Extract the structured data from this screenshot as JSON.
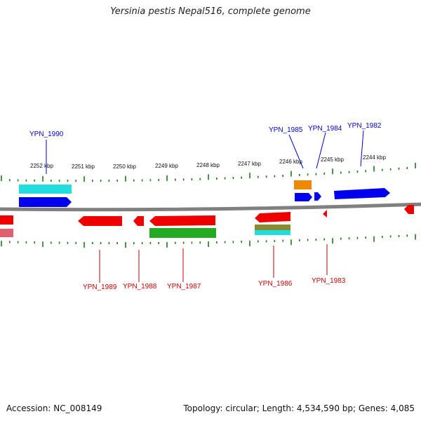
{
  "title": "Yersinia pestis Nepal516, complete genome",
  "footer": {
    "accession": "Accession: NC_008149",
    "info": "Topology: circular; Length: 4,534,590 bp; Genes: 4,085"
  },
  "colors": {
    "backbone": "#808080",
    "tick": "#1a7a1a",
    "label_top": "#0000cc",
    "label_bottom": "#cc0000",
    "blue": "#0000ee",
    "cyan": "#22dddd",
    "red": "#ee0000",
    "pink": "#e06070",
    "orange": "#ee8800",
    "green": "#22aa22",
    "olive": "#8a8a30"
  },
  "scale_labels": [
    "2252 kbp",
    "2251 kbp",
    "2250 kbp",
    "2249 kbp",
    "2248 kbp",
    "2247 kbp",
    "2246 kbp",
    "2245 kbp",
    "2244 kbp"
  ],
  "genes_top": [
    "YPN_1990",
    "YPN_1985",
    "YPN_1984",
    "YPN_1982"
  ],
  "genes_bottom": [
    "YPN_1989",
    "YPN_1988",
    "YPN_1987",
    "YPN_1986",
    "YPN_1983"
  ]
}
